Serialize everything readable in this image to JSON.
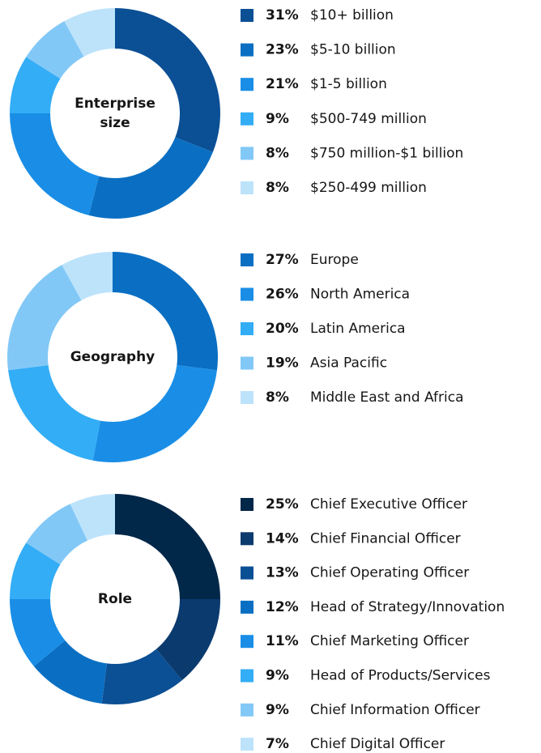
{
  "chart_data": [
    {
      "type": "donut",
      "title": "Enterprise size",
      "categories": [
        "$10+ billion",
        "$5-10 billion",
        "$1-5 billion",
        "$500-749 million",
        "$750 million-$1 billion",
        "$250-499 million"
      ],
      "values": [
        31,
        23,
        21,
        9,
        8,
        8
      ],
      "value_labels": [
        "31%",
        "23%",
        "21%",
        "9%",
        "8%",
        "8%"
      ],
      "colors": [
        "#0b4f95",
        "#0a6fc2",
        "#1a8ee6",
        "#33adf5",
        "#82c8f7",
        "#bde3fb"
      ]
    },
    {
      "type": "donut",
      "title": "Geography",
      "categories": [
        "Europe",
        "North America",
        "Latin America",
        "Asia Pacific",
        "Middle East and Africa"
      ],
      "values": [
        27,
        26,
        20,
        19,
        8
      ],
      "value_labels": [
        "27%",
        "26%",
        "20%",
        "19%",
        "8%"
      ],
      "colors": [
        "#0a6fc2",
        "#1a8ee6",
        "#33adf5",
        "#82c8f7",
        "#bde3fb"
      ]
    },
    {
      "type": "donut",
      "title": "Role",
      "categories": [
        "Chief Executive Officer",
        "Chief Financial Officer",
        "Chief Operating Officer",
        "Head of Strategy/Innovation",
        "Chief Marketing Officer",
        "Head of Products/Services",
        "Chief Information Officer",
        "Chief Digital Officer"
      ],
      "values": [
        25,
        14,
        13,
        12,
        11,
        9,
        9,
        7
      ],
      "value_labels": [
        "25%",
        "14%",
        "13%",
        "12%",
        "11%",
        "9%",
        "9%",
        "7%"
      ],
      "colors": [
        "#012749",
        "#0b3a6e",
        "#0b4f95",
        "#0a6fc2",
        "#1a8ee6",
        "#33adf5",
        "#82c8f7",
        "#bde3fb"
      ]
    }
  ]
}
